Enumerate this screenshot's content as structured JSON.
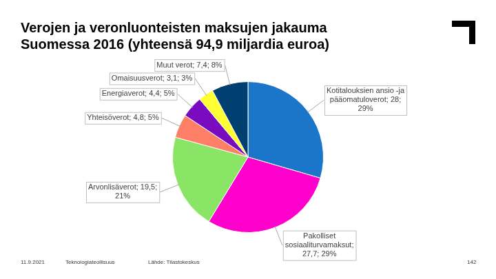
{
  "chart_data": {
    "type": "pie",
    "title": [
      "Verojen ja veronluonteisten maksujen jakauma",
      "Suomessa 2016 (yhteensä 94,9 miljardia euroa)"
    ],
    "categories": [
      "Kotitalouksien ansio -ja pääomatuloverot",
      "Pakolliset sosiaaliturvamaksut",
      "Arvonlisäverot",
      "Yhteisöverot",
      "Energiaverot",
      "Omaisuusverot",
      "Muut verot"
    ],
    "values": [
      28,
      27.7,
      19.5,
      4.8,
      4.4,
      3.1,
      7.4
    ],
    "value_labels": [
      "Kotitalouksien ansio -ja pääomatuloverot; 28; 29%",
      "Pakolliset sosiaaliturvamaksut; 27,7; 29%",
      "Arvonlisäverot; 19,5; 21%",
      "Yhteisöverot; 4,8; 5%",
      "Energiaverot; 4,4; 5%",
      "Omaisuusverot; 3,1; 3%",
      "Muut verot; 7,4; 8%"
    ],
    "colors": [
      "#1b75c9",
      "#ff00cc",
      "#8ae466",
      "#ff7f66",
      "#7a0cbf",
      "#ffff33",
      "#003f70"
    ],
    "data_labels": true
  },
  "footer": {
    "date": "11.9.2021",
    "org": "Teknologiateollisuus",
    "source": "Lähde: Tilastokeskus",
    "page": "142"
  }
}
